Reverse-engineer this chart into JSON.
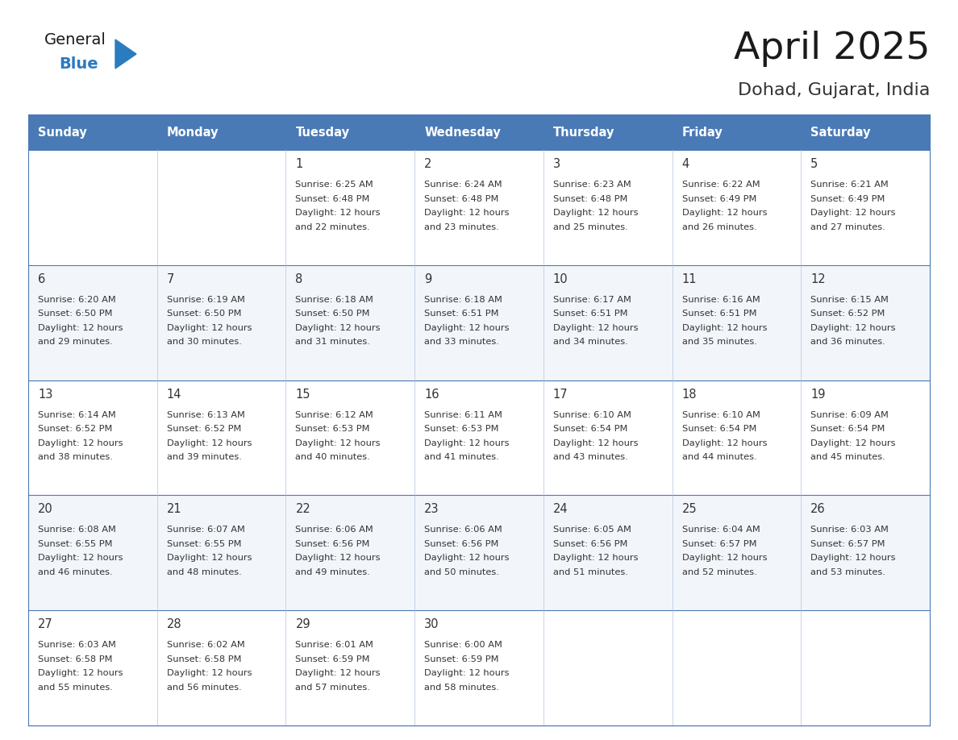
{
  "title": "April 2025",
  "subtitle": "Dohad, Gujarat, India",
  "header_color": "#4a7ab5",
  "header_text_color": "#ffffff",
  "day_names": [
    "Sunday",
    "Monday",
    "Tuesday",
    "Wednesday",
    "Thursday",
    "Friday",
    "Saturday"
  ],
  "row_bg_even": "#ffffff",
  "row_bg_odd": "#f2f6fb",
  "border_color": "#4a7ab5",
  "text_color": "#333333",
  "title_color": "#1a1a1a",
  "subtitle_color": "#333333",
  "logo_general_color": "#1a1a1a",
  "logo_blue_color": "#2a7bc0",
  "calendar": [
    [
      {
        "day": "",
        "sunrise": "",
        "sunset": "",
        "daylight": ""
      },
      {
        "day": "",
        "sunrise": "",
        "sunset": "",
        "daylight": ""
      },
      {
        "day": "1",
        "sunrise": "6:25 AM",
        "sunset": "6:48 PM",
        "daylight": "12 hours\nand 22 minutes."
      },
      {
        "day": "2",
        "sunrise": "6:24 AM",
        "sunset": "6:48 PM",
        "daylight": "12 hours\nand 23 minutes."
      },
      {
        "day": "3",
        "sunrise": "6:23 AM",
        "sunset": "6:48 PM",
        "daylight": "12 hours\nand 25 minutes."
      },
      {
        "day": "4",
        "sunrise": "6:22 AM",
        "sunset": "6:49 PM",
        "daylight": "12 hours\nand 26 minutes."
      },
      {
        "day": "5",
        "sunrise": "6:21 AM",
        "sunset": "6:49 PM",
        "daylight": "12 hours\nand 27 minutes."
      }
    ],
    [
      {
        "day": "6",
        "sunrise": "6:20 AM",
        "sunset": "6:50 PM",
        "daylight": "12 hours\nand 29 minutes."
      },
      {
        "day": "7",
        "sunrise": "6:19 AM",
        "sunset": "6:50 PM",
        "daylight": "12 hours\nand 30 minutes."
      },
      {
        "day": "8",
        "sunrise": "6:18 AM",
        "sunset": "6:50 PM",
        "daylight": "12 hours\nand 31 minutes."
      },
      {
        "day": "9",
        "sunrise": "6:18 AM",
        "sunset": "6:51 PM",
        "daylight": "12 hours\nand 33 minutes."
      },
      {
        "day": "10",
        "sunrise": "6:17 AM",
        "sunset": "6:51 PM",
        "daylight": "12 hours\nand 34 minutes."
      },
      {
        "day": "11",
        "sunrise": "6:16 AM",
        "sunset": "6:51 PM",
        "daylight": "12 hours\nand 35 minutes."
      },
      {
        "day": "12",
        "sunrise": "6:15 AM",
        "sunset": "6:52 PM",
        "daylight": "12 hours\nand 36 minutes."
      }
    ],
    [
      {
        "day": "13",
        "sunrise": "6:14 AM",
        "sunset": "6:52 PM",
        "daylight": "12 hours\nand 38 minutes."
      },
      {
        "day": "14",
        "sunrise": "6:13 AM",
        "sunset": "6:52 PM",
        "daylight": "12 hours\nand 39 minutes."
      },
      {
        "day": "15",
        "sunrise": "6:12 AM",
        "sunset": "6:53 PM",
        "daylight": "12 hours\nand 40 minutes."
      },
      {
        "day": "16",
        "sunrise": "6:11 AM",
        "sunset": "6:53 PM",
        "daylight": "12 hours\nand 41 minutes."
      },
      {
        "day": "17",
        "sunrise": "6:10 AM",
        "sunset": "6:54 PM",
        "daylight": "12 hours\nand 43 minutes."
      },
      {
        "day": "18",
        "sunrise": "6:10 AM",
        "sunset": "6:54 PM",
        "daylight": "12 hours\nand 44 minutes."
      },
      {
        "day": "19",
        "sunrise": "6:09 AM",
        "sunset": "6:54 PM",
        "daylight": "12 hours\nand 45 minutes."
      }
    ],
    [
      {
        "day": "20",
        "sunrise": "6:08 AM",
        "sunset": "6:55 PM",
        "daylight": "12 hours\nand 46 minutes."
      },
      {
        "day": "21",
        "sunrise": "6:07 AM",
        "sunset": "6:55 PM",
        "daylight": "12 hours\nand 48 minutes."
      },
      {
        "day": "22",
        "sunrise": "6:06 AM",
        "sunset": "6:56 PM",
        "daylight": "12 hours\nand 49 minutes."
      },
      {
        "day": "23",
        "sunrise": "6:06 AM",
        "sunset": "6:56 PM",
        "daylight": "12 hours\nand 50 minutes."
      },
      {
        "day": "24",
        "sunrise": "6:05 AM",
        "sunset": "6:56 PM",
        "daylight": "12 hours\nand 51 minutes."
      },
      {
        "day": "25",
        "sunrise": "6:04 AM",
        "sunset": "6:57 PM",
        "daylight": "12 hours\nand 52 minutes."
      },
      {
        "day": "26",
        "sunrise": "6:03 AM",
        "sunset": "6:57 PM",
        "daylight": "12 hours\nand 53 minutes."
      }
    ],
    [
      {
        "day": "27",
        "sunrise": "6:03 AM",
        "sunset": "6:58 PM",
        "daylight": "12 hours\nand 55 minutes."
      },
      {
        "day": "28",
        "sunrise": "6:02 AM",
        "sunset": "6:58 PM",
        "daylight": "12 hours\nand 56 minutes."
      },
      {
        "day": "29",
        "sunrise": "6:01 AM",
        "sunset": "6:59 PM",
        "daylight": "12 hours\nand 57 minutes."
      },
      {
        "day": "30",
        "sunrise": "6:00 AM",
        "sunset": "6:59 PM",
        "daylight": "12 hours\nand 58 minutes."
      },
      {
        "day": "",
        "sunrise": "",
        "sunset": "",
        "daylight": ""
      },
      {
        "day": "",
        "sunrise": "",
        "sunset": "",
        "daylight": ""
      },
      {
        "day": "",
        "sunrise": "",
        "sunset": "",
        "daylight": ""
      }
    ]
  ]
}
